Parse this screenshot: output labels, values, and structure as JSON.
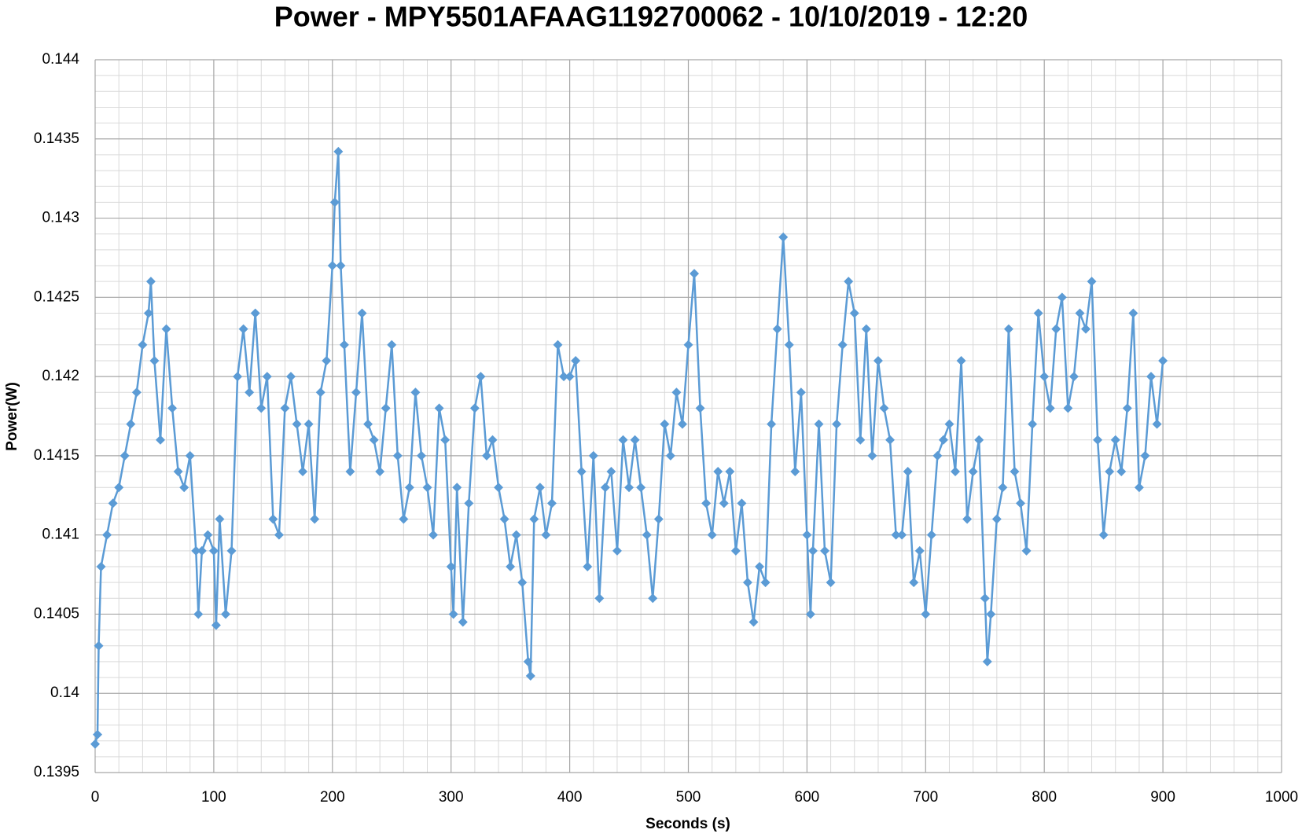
{
  "chart_data": {
    "type": "line",
    "title": "Power - MPY5501AFAAG1192700062 - 10/10/2019 - 12:20",
    "x_label": "Seconds (s)",
    "y_label": "Power(W)",
    "color": "#5b9bd5",
    "marker": "diamond",
    "grid": true,
    "minor_grid": true,
    "xlim": [
      0,
      1000
    ],
    "xticks": [
      0,
      100,
      200,
      300,
      400,
      500,
      600,
      700,
      800,
      900,
      1000
    ],
    "ylim": [
      0.1395,
      0.144
    ],
    "yticks": [
      0.1395,
      0.14,
      0.1405,
      0.141,
      0.1415,
      0.142,
      0.1425,
      0.143,
      0.1435,
      0.144
    ],
    "x": [
      0,
      2,
      3,
      5,
      10,
      15,
      20,
      25,
      30,
      35,
      40,
      45,
      47,
      50,
      55,
      60,
      65,
      70,
      75,
      80,
      85,
      87,
      90,
      95,
      100,
      102,
      105,
      110,
      115,
      120,
      125,
      130,
      135,
      140,
      145,
      150,
      155,
      160,
      165,
      170,
      175,
      180,
      185,
      190,
      195,
      200,
      202,
      205,
      207,
      210,
      215,
      220,
      225,
      230,
      235,
      240,
      245,
      250,
      255,
      260,
      265,
      270,
      275,
      280,
      285,
      290,
      295,
      300,
      302,
      305,
      310,
      315,
      320,
      325,
      330,
      335,
      340,
      345,
      350,
      355,
      360,
      365,
      367,
      370,
      375,
      380,
      385,
      390,
      395,
      400,
      405,
      410,
      415,
      420,
      425,
      430,
      435,
      440,
      445,
      450,
      455,
      460,
      465,
      470,
      475,
      480,
      485,
      490,
      495,
      500,
      505,
      510,
      515,
      520,
      525,
      530,
      535,
      540,
      545,
      550,
      555,
      560,
      565,
      570,
      575,
      580,
      585,
      590,
      595,
      600,
      603,
      605,
      610,
      615,
      620,
      625,
      630,
      635,
      640,
      645,
      650,
      655,
      660,
      665,
      670,
      675,
      680,
      685,
      690,
      695,
      700,
      705,
      710,
      715,
      720,
      725,
      730,
      735,
      740,
      745,
      750,
      752,
      755,
      760,
      765,
      770,
      775,
      780,
      785,
      790,
      795,
      800,
      805,
      810,
      815,
      820,
      825,
      830,
      835,
      840,
      845,
      850,
      855,
      860,
      865,
      870,
      875,
      880,
      885,
      890,
      895,
      900
    ],
    "values": [
      0.13968,
      0.13974,
      0.1403,
      0.1408,
      0.141,
      0.1412,
      0.1413,
      0.1415,
      0.1417,
      0.1419,
      0.1422,
      0.1424,
      0.1426,
      0.1421,
      0.1416,
      0.1423,
      0.1418,
      0.1414,
      0.1413,
      0.1415,
      0.1409,
      0.1405,
      0.1409,
      0.141,
      0.1409,
      0.14043,
      0.1411,
      0.1405,
      0.1409,
      0.142,
      0.1423,
      0.1419,
      0.1424,
      0.1418,
      0.142,
      0.1411,
      0.141,
      0.1418,
      0.142,
      0.1417,
      0.1414,
      0.1417,
      0.1411,
      0.1419,
      0.1421,
      0.1427,
      0.1431,
      0.14342,
      0.1427,
      0.1422,
      0.1414,
      0.1419,
      0.1424,
      0.1417,
      0.1416,
      0.1414,
      0.1418,
      0.1422,
      0.1415,
      0.1411,
      0.1413,
      0.1419,
      0.1415,
      0.1413,
      0.141,
      0.1418,
      0.1416,
      0.1408,
      0.1405,
      0.1413,
      0.14045,
      0.1412,
      0.1418,
      0.142,
      0.1415,
      0.1416,
      0.1413,
      0.1411,
      0.1408,
      0.141,
      0.1407,
      0.1402,
      0.14011,
      0.1411,
      0.1413,
      0.141,
      0.1412,
      0.1422,
      0.142,
      0.142,
      0.1421,
      0.1414,
      0.1408,
      0.1415,
      0.1406,
      0.1413,
      0.1414,
      0.1409,
      0.1416,
      0.1413,
      0.1416,
      0.1413,
      0.141,
      0.1406,
      0.1411,
      0.1417,
      0.1415,
      0.1419,
      0.1417,
      0.1422,
      0.14265,
      0.1418,
      0.1412,
      0.141,
      0.1414,
      0.1412,
      0.1414,
      0.1409,
      0.1412,
      0.1407,
      0.14045,
      0.1408,
      0.1407,
      0.1417,
      0.1423,
      0.14288,
      0.1422,
      0.1414,
      0.1419,
      0.141,
      0.1405,
      0.1409,
      0.1417,
      0.1409,
      0.1407,
      0.1417,
      0.1422,
      0.1426,
      0.1424,
      0.1416,
      0.1423,
      0.1415,
      0.1421,
      0.1418,
      0.1416,
      0.141,
      0.141,
      0.1414,
      0.1407,
      0.1409,
      0.1405,
      0.141,
      0.1415,
      0.1416,
      0.1417,
      0.1414,
      0.1421,
      0.1411,
      0.1414,
      0.1416,
      0.1406,
      0.1402,
      0.1405,
      0.1411,
      0.1413,
      0.1423,
      0.1414,
      0.1412,
      0.1409,
      0.1417,
      0.1424,
      0.142,
      0.1418,
      0.1423,
      0.1425,
      0.1418,
      0.142,
      0.1424,
      0.1423,
      0.1426,
      0.1416,
      0.141,
      0.1414,
      0.1416,
      0.1414,
      0.1418,
      0.1424,
      0.1413,
      0.1415,
      0.142,
      0.1417,
      0.1421
    ]
  }
}
